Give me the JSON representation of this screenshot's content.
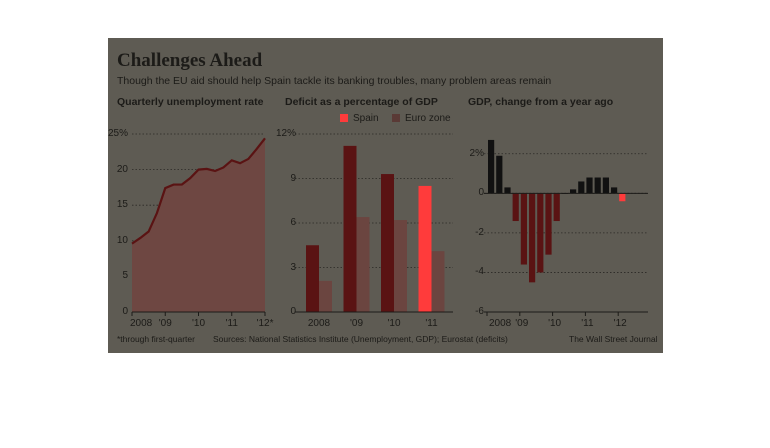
{
  "graphic": {
    "title": "Challenges Ahead",
    "subtitle": "Though the EU aid should help Spain tackle its banking troubles, many problem areas remain",
    "footnote": "*through first-quarter",
    "sources": "Sources: National Statistics Institute (Unemployment, GDP); Eurostat (deficits)",
    "credit": "The Wall Street Journal",
    "colors": {
      "background": "#5e5b53",
      "dark_red": "#5a1313",
      "bright_red": "#ff3b3b",
      "area_fill": "#6e4742",
      "line": "#5a1313",
      "black": "#111111"
    }
  },
  "chart_data": [
    {
      "type": "area",
      "title": "Quarterly unemployment rate",
      "x_tick_labels": [
        "2008",
        "'09",
        "'10",
        "'11",
        "'12*"
      ],
      "y_tick_labels": [
        "0",
        "5",
        "10",
        "15",
        "20",
        "25%"
      ],
      "ylim": [
        0,
        25
      ],
      "x": [
        2008.0,
        2008.25,
        2008.5,
        2008.75,
        2009.0,
        2009.25,
        2009.5,
        2009.75,
        2010.0,
        2010.25,
        2010.5,
        2010.75,
        2011.0,
        2011.25,
        2011.5,
        2011.75,
        2012.0
      ],
      "values": [
        9.6,
        10.4,
        11.3,
        13.9,
        17.4,
        17.9,
        17.9,
        18.8,
        20.0,
        20.1,
        19.8,
        20.3,
        21.3,
        20.9,
        21.5,
        22.9,
        24.4
      ],
      "grid": true
    },
    {
      "type": "bar",
      "title": "Deficit as a percentage of GDP",
      "categories": [
        "2008",
        "'09",
        "'10",
        "'11"
      ],
      "series": [
        {
          "name": "Spain",
          "values": [
            4.5,
            11.2,
            9.3,
            8.5
          ]
        },
        {
          "name": "Euro zone",
          "values": [
            2.1,
            6.4,
            6.2,
            4.1
          ]
        }
      ],
      "y_tick_labels": [
        "0",
        "3",
        "6",
        "9",
        "12%"
      ],
      "ylim": [
        0,
        12
      ],
      "legend": "top-right",
      "grid": true
    },
    {
      "type": "bar",
      "title": "GDP, change from a year ago",
      "x_tick_labels": [
        "2008",
        "'09",
        "'10",
        "'11",
        "'12"
      ],
      "x": [
        2008.0,
        2008.25,
        2008.5,
        2008.75,
        2009.0,
        2009.25,
        2009.5,
        2009.75,
        2010.0,
        2010.25,
        2010.5,
        2010.75,
        2011.0,
        2011.25,
        2011.5,
        2011.75,
        2012.0
      ],
      "values": [
        2.7,
        1.9,
        0.3,
        -1.4,
        -3.6,
        -4.5,
        -4.0,
        -3.1,
        -1.4,
        0.0,
        0.2,
        0.6,
        0.8,
        0.8,
        0.8,
        0.3,
        -0.4
      ],
      "y_tick_labels": [
        "-6",
        "-4",
        "-2",
        "0",
        "2%"
      ],
      "ylim": [
        -6,
        3
      ],
      "grid": true
    }
  ]
}
